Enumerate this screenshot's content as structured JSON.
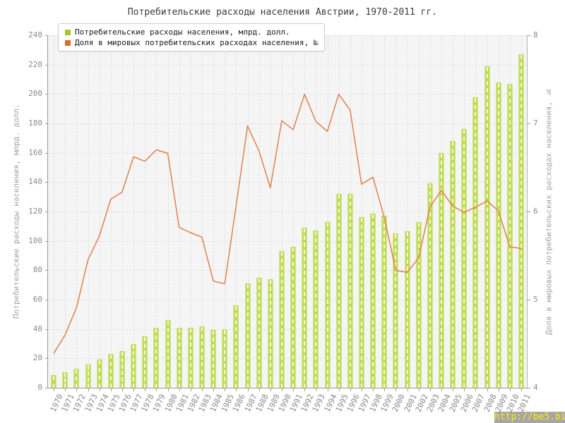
{
  "title": "Потребительские расходы населения Австрии, 1970-2011 гг.",
  "legend": [
    {
      "label": "Потребительские расходы населения, млрд. долл.",
      "color": "#a4c62e"
    },
    {
      "label": "Доля в мировых потребительских расходах населения, ‰",
      "color": "#d96f2b"
    }
  ],
  "axes": {
    "left": {
      "label": "Потребительские расходы населения, млрд. долл.",
      "ticks": [
        0,
        20,
        40,
        60,
        80,
        100,
        120,
        140,
        160,
        180,
        200,
        220,
        240
      ]
    },
    "right": {
      "label": "Доля в мировых потребительских расходах населения, ‰",
      "ticks": [
        4,
        5,
        6,
        7,
        8
      ]
    }
  },
  "chart_data": {
    "type": "bar",
    "title": "Потребительские расходы населения Австрии, 1970-2011 гг.",
    "categories": [
      "1970",
      "1971",
      "1972",
      "1973",
      "1974",
      "1975",
      "1976",
      "1977",
      "1978",
      "1979",
      "1980",
      "1981",
      "1982",
      "1983",
      "1984",
      "1985",
      "1986",
      "1987",
      "1988",
      "1989",
      "1990",
      "1991",
      "1992",
      "1993",
      "1994",
      "1995",
      "1996",
      "1997",
      "1998",
      "1999",
      "2000",
      "2001",
      "2002",
      "2003",
      "2004",
      "2005",
      "2006",
      "2007",
      "2008",
      "2009",
      "2010",
      "2011"
    ],
    "series": [
      {
        "name": "Потребительские расходы населения, млрд. долл.",
        "type": "bar",
        "axis": "left",
        "color": "#bcd94b",
        "values": [
          8.6,
          10.5,
          13,
          16,
          19,
          23,
          25,
          30,
          35,
          41,
          46,
          41,
          41,
          42,
          39.5,
          40,
          56,
          71,
          75,
          74,
          93,
          96,
          109,
          107,
          113,
          132,
          132,
          116,
          118.5,
          117,
          105,
          106.5,
          113,
          139,
          160,
          168,
          176,
          198,
          219,
          208,
          207,
          227
        ]
      },
      {
        "name": "Доля в мировых потребительских расходах населения, ‰",
        "type": "line",
        "axis": "right",
        "color": "#e0804b",
        "values": [
          4.39,
          4.6,
          4.91,
          5.45,
          5.72,
          6.14,
          6.22,
          6.62,
          6.57,
          6.7,
          6.66,
          5.82,
          5.76,
          5.71,
          5.21,
          5.18,
          6.07,
          6.97,
          6.69,
          6.27,
          7.03,
          6.93,
          7.33,
          7.02,
          6.91,
          7.33,
          7.15,
          6.31,
          6.39,
          5.93,
          5.33,
          5.31,
          5.47,
          6.05,
          6.24,
          6.06,
          5.99,
          6.05,
          6.12,
          6.01,
          5.6,
          5.58
        ]
      }
    ],
    "ylim_left": [
      0,
      240
    ],
    "ylim_right": [
      4,
      8
    ],
    "grid": true,
    "legend_position": "top-left"
  },
  "watermark": {
    "text": "http://be5.biz/",
    "bg": "#a6a6a6",
    "color": "#ffec00"
  }
}
